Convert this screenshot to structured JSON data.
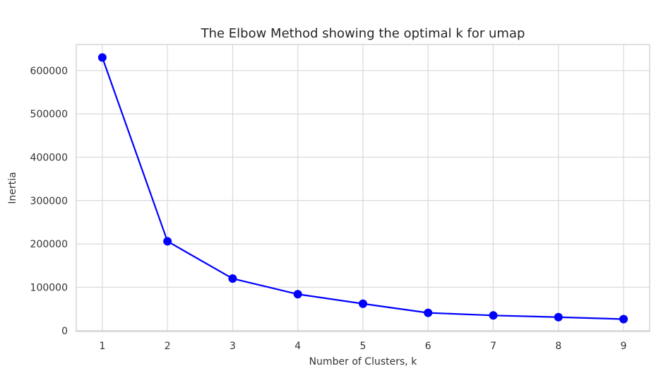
{
  "chart_data": {
    "type": "line",
    "title": "The Elbow Method showing the optimal k for umap",
    "xlabel": "Number of Clusters, k",
    "ylabel": "Inertia",
    "x": [
      1,
      2,
      3,
      4,
      5,
      6,
      7,
      8,
      9
    ],
    "x_tick_labels": [
      "1",
      "2",
      "3",
      "4",
      "5",
      "6",
      "7",
      "8",
      "9"
    ],
    "y_ticks": [
      0,
      100000,
      200000,
      300000,
      400000,
      500000,
      600000
    ],
    "y_tick_labels": [
      "0",
      "100000",
      "200000",
      "300000",
      "400000",
      "500000",
      "600000"
    ],
    "xlim": [
      0.6,
      9.4
    ],
    "ylim": [
      -2000,
      660000
    ],
    "grid": true,
    "series": [
      {
        "color": "#0000ff",
        "marker": "circle",
        "values": [
          630000,
          206000,
          120000,
          84000,
          62000,
          41000,
          35000,
          31000,
          26500
        ]
      }
    ]
  }
}
